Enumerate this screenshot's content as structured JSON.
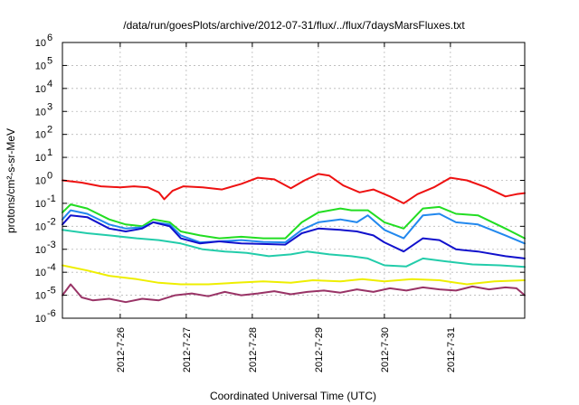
{
  "chart_data": {
    "type": "line",
    "title": "/data/run/goesPlots/archive/2012-07-31/flux/../flux/7daysMarsFluxes.txt",
    "xlabel": "Coordinated Universal Time (UTC)",
    "ylabel": "protons/cm²-s-sr-MeV",
    "x_range": [
      "2012-07-25T03:00",
      "2012-08-01T03:00"
    ],
    "x_ticks": [
      "2012-7-26",
      "2012-7-27",
      "2012-7-28",
      "2012-7-29",
      "2012-7-30",
      "2012-7-31"
    ],
    "y_scale": "log",
    "ylim": [
      1e-06,
      1000000.0
    ],
    "y_ticks": [
      {
        "base": "10",
        "exp": "-6"
      },
      {
        "base": "10",
        "exp": "-5"
      },
      {
        "base": "10",
        "exp": "-4"
      },
      {
        "base": "10",
        "exp": "-3"
      },
      {
        "base": "10",
        "exp": "-2"
      },
      {
        "base": "10",
        "exp": "-1"
      },
      {
        "base": "10",
        "exp": "0"
      },
      {
        "base": "10",
        "exp": "1"
      },
      {
        "base": "10",
        "exp": "2"
      },
      {
        "base": "10",
        "exp": "3"
      },
      {
        "base": "10",
        "exp": "4"
      },
      {
        "base": "10",
        "exp": "5"
      },
      {
        "base": "10",
        "exp": "6"
      }
    ],
    "grid": true,
    "series": [
      {
        "color": "#ee1111",
        "points": [
          [
            "2012-07-25T03:00",
            1.0
          ],
          [
            "2012-07-25T10:00",
            0.8
          ],
          [
            "2012-07-25T17:00",
            0.55
          ],
          [
            "2012-07-26T00:00",
            0.5
          ],
          [
            "2012-07-26T05:00",
            0.55
          ],
          [
            "2012-07-26T10:00",
            0.5
          ],
          [
            "2012-07-26T14:00",
            0.3
          ],
          [
            "2012-07-26T16:00",
            0.15
          ],
          [
            "2012-07-26T19:00",
            0.35
          ],
          [
            "2012-07-26T23:00",
            0.55
          ],
          [
            "2012-07-27T06:00",
            0.5
          ],
          [
            "2012-07-27T13:00",
            0.4
          ],
          [
            "2012-07-27T20:00",
            0.7
          ],
          [
            "2012-07-28T02:00",
            1.3
          ],
          [
            "2012-07-28T08:00",
            1.1
          ],
          [
            "2012-07-28T14:00",
            0.45
          ],
          [
            "2012-07-28T19:00",
            1.0
          ],
          [
            "2012-07-29T00:00",
            1.9
          ],
          [
            "2012-07-29T04:00",
            1.6
          ],
          [
            "2012-07-29T09:00",
            0.6
          ],
          [
            "2012-07-29T15:00",
            0.3
          ],
          [
            "2012-07-29T20:00",
            0.4
          ],
          [
            "2012-07-30T02:00",
            0.2
          ],
          [
            "2012-07-30T07:00",
            0.1
          ],
          [
            "2012-07-30T12:00",
            0.25
          ],
          [
            "2012-07-30T18:00",
            0.5
          ],
          [
            "2012-07-31T00:00",
            1.3
          ],
          [
            "2012-07-31T06:00",
            1.0
          ],
          [
            "2012-07-31T13:00",
            0.5
          ],
          [
            "2012-07-31T20:00",
            0.2
          ],
          [
            "2012-08-01T00:00",
            0.25
          ],
          [
            "2012-08-01T03:00",
            0.28
          ]
        ]
      },
      {
        "color": "#22dd22",
        "points": [
          [
            "2012-07-25T03:00",
            0.04
          ],
          [
            "2012-07-25T06:00",
            0.09
          ],
          [
            "2012-07-25T12:00",
            0.06
          ],
          [
            "2012-07-25T20:00",
            0.02
          ],
          [
            "2012-07-26T02:00",
            0.012
          ],
          [
            "2012-07-26T08:00",
            0.01
          ],
          [
            "2012-07-26T12:00",
            0.02
          ],
          [
            "2012-07-26T18:00",
            0.015
          ],
          [
            "2012-07-26T22:00",
            0.006
          ],
          [
            "2012-07-27T05:00",
            0.004
          ],
          [
            "2012-07-27T12:00",
            0.003
          ],
          [
            "2012-07-27T20:00",
            0.0035
          ],
          [
            "2012-07-28T04:00",
            0.003
          ],
          [
            "2012-07-28T12:00",
            0.003
          ],
          [
            "2012-07-28T18:00",
            0.015
          ],
          [
            "2012-07-29T00:00",
            0.04
          ],
          [
            "2012-07-29T08:00",
            0.06
          ],
          [
            "2012-07-29T12:00",
            0.05
          ],
          [
            "2012-07-29T18:00",
            0.05
          ],
          [
            "2012-07-30T00:00",
            0.015
          ],
          [
            "2012-07-30T07:00",
            0.008
          ],
          [
            "2012-07-30T14:00",
            0.06
          ],
          [
            "2012-07-30T20:00",
            0.07
          ],
          [
            "2012-07-31T02:00",
            0.035
          ],
          [
            "2012-07-31T10:00",
            0.03
          ],
          [
            "2012-07-31T20:00",
            0.008
          ],
          [
            "2012-08-01T03:00",
            0.003
          ]
        ]
      },
      {
        "color": "#2288ee",
        "points": [
          [
            "2012-07-25T03:00",
            0.02
          ],
          [
            "2012-07-25T06:00",
            0.05
          ],
          [
            "2012-07-25T12:00",
            0.035
          ],
          [
            "2012-07-25T20:00",
            0.012
          ],
          [
            "2012-07-26T02:00",
            0.008
          ],
          [
            "2012-07-26T08:00",
            0.009
          ],
          [
            "2012-07-26T12:00",
            0.015
          ],
          [
            "2012-07-26T18:00",
            0.012
          ],
          [
            "2012-07-26T22:00",
            0.004
          ],
          [
            "2012-07-27T05:00",
            0.002
          ],
          [
            "2012-07-27T12:00",
            0.0022
          ],
          [
            "2012-07-27T20:00",
            0.0025
          ],
          [
            "2012-07-28T04:00",
            0.0021
          ],
          [
            "2012-07-28T12:00",
            0.002
          ],
          [
            "2012-07-28T18:00",
            0.007
          ],
          [
            "2012-07-29T00:00",
            0.015
          ],
          [
            "2012-07-29T08:00",
            0.02
          ],
          [
            "2012-07-29T14:00",
            0.015
          ],
          [
            "2012-07-29T18:00",
            0.03
          ],
          [
            "2012-07-30T00:00",
            0.007
          ],
          [
            "2012-07-30T07:00",
            0.003
          ],
          [
            "2012-07-30T14:00",
            0.03
          ],
          [
            "2012-07-30T20:00",
            0.035
          ],
          [
            "2012-07-31T02:00",
            0.015
          ],
          [
            "2012-07-31T10:00",
            0.012
          ],
          [
            "2012-07-31T20:00",
            0.004
          ],
          [
            "2012-08-01T03:00",
            0.0018
          ]
        ]
      },
      {
        "color": "#1111cc",
        "points": [
          [
            "2012-07-25T03:00",
            0.012
          ],
          [
            "2012-07-25T06:00",
            0.03
          ],
          [
            "2012-07-25T12:00",
            0.025
          ],
          [
            "2012-07-25T20:00",
            0.008
          ],
          [
            "2012-07-26T02:00",
            0.006
          ],
          [
            "2012-07-26T08:00",
            0.008
          ],
          [
            "2012-07-26T12:00",
            0.015
          ],
          [
            "2012-07-26T18:00",
            0.01
          ],
          [
            "2012-07-26T22:00",
            0.003
          ],
          [
            "2012-07-27T05:00",
            0.0018
          ],
          [
            "2012-07-27T12:00",
            0.0022
          ],
          [
            "2012-07-27T20:00",
            0.0018
          ],
          [
            "2012-07-28T04:00",
            0.0017
          ],
          [
            "2012-07-28T12:00",
            0.0016
          ],
          [
            "2012-07-28T18:00",
            0.005
          ],
          [
            "2012-07-29T00:00",
            0.008
          ],
          [
            "2012-07-29T08:00",
            0.007
          ],
          [
            "2012-07-29T14:00",
            0.006
          ],
          [
            "2012-07-29T20:00",
            0.004
          ],
          [
            "2012-07-30T00:00",
            0.002
          ],
          [
            "2012-07-30T07:00",
            0.0008
          ],
          [
            "2012-07-30T14:00",
            0.003
          ],
          [
            "2012-07-30T20:00",
            0.0025
          ],
          [
            "2012-07-31T02:00",
            0.001
          ],
          [
            "2012-07-31T10:00",
            0.0008
          ],
          [
            "2012-07-31T20:00",
            0.0005
          ],
          [
            "2012-08-01T03:00",
            0.0004
          ]
        ]
      },
      {
        "color": "#22ccaa",
        "points": [
          [
            "2012-07-25T03:00",
            0.007
          ],
          [
            "2012-07-25T12:00",
            0.005
          ],
          [
            "2012-07-25T20:00",
            0.004
          ],
          [
            "2012-07-26T06:00",
            0.003
          ],
          [
            "2012-07-26T14:00",
            0.0025
          ],
          [
            "2012-07-26T22:00",
            0.0018
          ],
          [
            "2012-07-27T06:00",
            0.001
          ],
          [
            "2012-07-27T14:00",
            0.0008
          ],
          [
            "2012-07-27T22:00",
            0.0007
          ],
          [
            "2012-07-28T06:00",
            0.0005
          ],
          [
            "2012-07-28T14:00",
            0.0006
          ],
          [
            "2012-07-28T20:00",
            0.0008
          ],
          [
            "2012-07-29T04:00",
            0.0006
          ],
          [
            "2012-07-29T12:00",
            0.0005
          ],
          [
            "2012-07-29T18:00",
            0.0004
          ],
          [
            "2012-07-30T00:00",
            0.0002
          ],
          [
            "2012-07-30T08:00",
            0.00018
          ],
          [
            "2012-07-30T14:00",
            0.0004
          ],
          [
            "2012-07-30T22:00",
            0.0003
          ],
          [
            "2012-07-31T08:00",
            0.00022
          ],
          [
            "2012-07-31T18:00",
            0.0002
          ],
          [
            "2012-08-01T03:00",
            0.00017
          ]
        ]
      },
      {
        "color": "#eeee00",
        "points": [
          [
            "2012-07-25T03:00",
            0.0002
          ],
          [
            "2012-07-25T12:00",
            0.00012
          ],
          [
            "2012-07-25T20:00",
            7e-05
          ],
          [
            "2012-07-26T06:00",
            5e-05
          ],
          [
            "2012-07-26T14:00",
            3.5e-05
          ],
          [
            "2012-07-26T22:00",
            3e-05
          ],
          [
            "2012-07-27T08:00",
            3e-05
          ],
          [
            "2012-07-27T18:00",
            3.5e-05
          ],
          [
            "2012-07-28T04:00",
            4e-05
          ],
          [
            "2012-07-28T14:00",
            3.5e-05
          ],
          [
            "2012-07-28T22:00",
            4.5e-05
          ],
          [
            "2012-07-29T08:00",
            4e-05
          ],
          [
            "2012-07-29T16:00",
            5e-05
          ],
          [
            "2012-07-30T00:00",
            4e-05
          ],
          [
            "2012-07-30T10:00",
            5e-05
          ],
          [
            "2012-07-30T20:00",
            4.5e-05
          ],
          [
            "2012-07-31T06:00",
            3e-05
          ],
          [
            "2012-07-31T16:00",
            4e-05
          ],
          [
            "2012-08-01T03:00",
            4.5e-05
          ]
        ]
      },
      {
        "color": "#993366",
        "points": [
          [
            "2012-07-25T03:00",
            1e-05
          ],
          [
            "2012-07-25T06:00",
            3e-05
          ],
          [
            "2012-07-25T10:00",
            8e-06
          ],
          [
            "2012-07-25T14:00",
            6e-06
          ],
          [
            "2012-07-25T20:00",
            7e-06
          ],
          [
            "2012-07-26T02:00",
            5e-06
          ],
          [
            "2012-07-26T08:00",
            7e-06
          ],
          [
            "2012-07-26T14:00",
            6e-06
          ],
          [
            "2012-07-26T20:00",
            1e-05
          ],
          [
            "2012-07-27T02:00",
            1.2e-05
          ],
          [
            "2012-07-27T08:00",
            9e-06
          ],
          [
            "2012-07-27T14:00",
            1.4e-05
          ],
          [
            "2012-07-27T20:00",
            1e-05
          ],
          [
            "2012-07-28T02:00",
            1.2e-05
          ],
          [
            "2012-07-28T08:00",
            1.5e-05
          ],
          [
            "2012-07-28T14:00",
            1.1e-05
          ],
          [
            "2012-07-28T20:00",
            1.4e-05
          ],
          [
            "2012-07-29T02:00",
            1.6e-05
          ],
          [
            "2012-07-29T08:00",
            1.3e-05
          ],
          [
            "2012-07-29T14:00",
            1.8e-05
          ],
          [
            "2012-07-29T20:00",
            1.4e-05
          ],
          [
            "2012-07-30T02:00",
            2e-05
          ],
          [
            "2012-07-30T08:00",
            1.6e-05
          ],
          [
            "2012-07-30T14:00",
            2.2e-05
          ],
          [
            "2012-07-30T20:00",
            1.8e-05
          ],
          [
            "2012-07-31T02:00",
            1.6e-05
          ],
          [
            "2012-07-31T08:00",
            2.4e-05
          ],
          [
            "2012-07-31T14:00",
            1.8e-05
          ],
          [
            "2012-07-31T20:00",
            2.2e-05
          ],
          [
            "2012-08-01T00:00",
            2e-05
          ],
          [
            "2012-08-01T03:00",
            1e-05
          ]
        ]
      }
    ]
  }
}
